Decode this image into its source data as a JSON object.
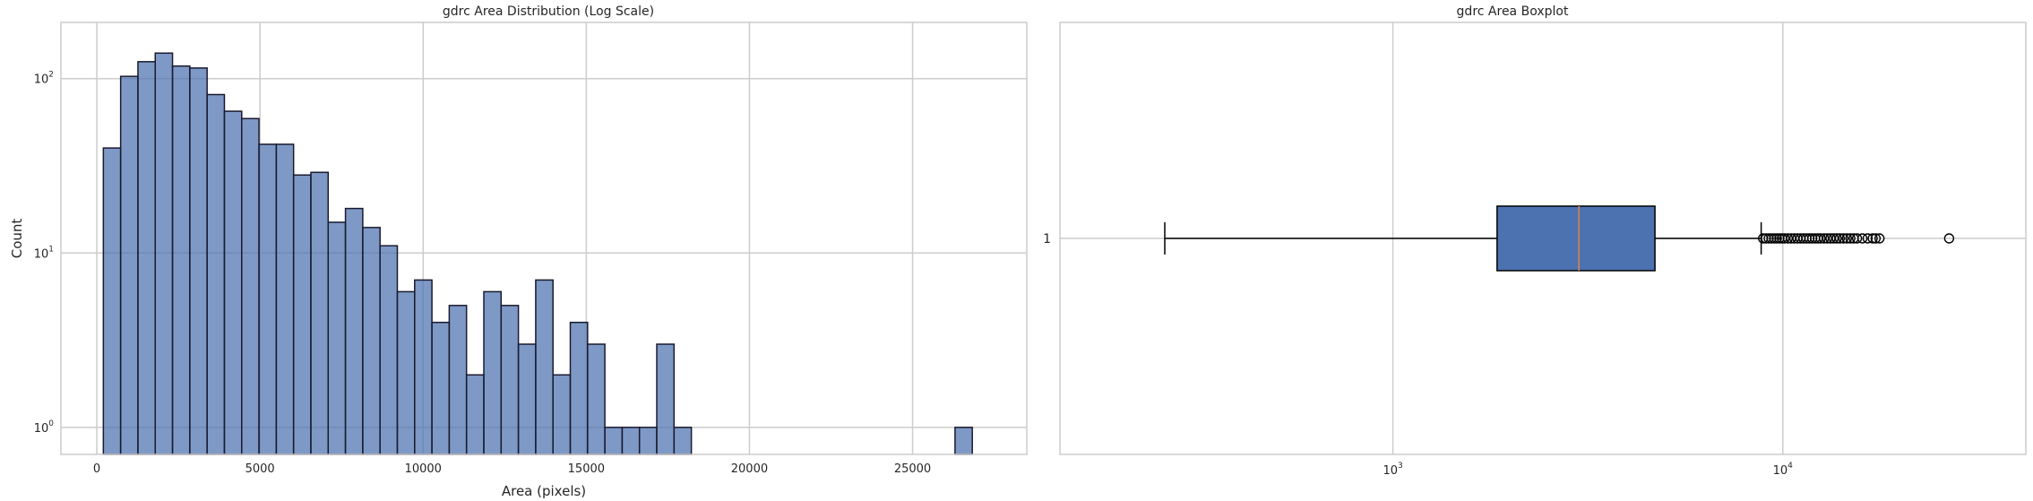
{
  "chart_data": [
    {
      "type": "bar",
      "title": "gdrc Area Distribution (Log Scale)",
      "xlabel": "Area (pixels)",
      "ylabel": "Count",
      "y_scale": "log",
      "xlim": [
        -1100,
        28500
      ],
      "ylim": [
        0.7,
        210
      ],
      "x_ticks": [
        0,
        5000,
        10000,
        15000,
        20000,
        25000
      ],
      "x_tick_labels": [
        "0",
        "5000",
        "10000",
        "15000",
        "20000",
        "25000"
      ],
      "y_ticks": [
        1,
        10,
        100
      ],
      "y_tick_labels": [
        {
          "base": "10",
          "exp": "0"
        },
        {
          "base": "10",
          "exp": "1"
        },
        {
          "base": "10",
          "exp": "2"
        }
      ],
      "grid": true,
      "bar_color": "#4c72b0",
      "bar_edge_color": "#1a1a2e",
      "bins": [
        {
          "x0": 200,
          "x1": 730,
          "count": 40
        },
        {
          "x0": 730,
          "x1": 1260,
          "count": 103
        },
        {
          "x0": 1260,
          "x1": 1790,
          "count": 125
        },
        {
          "x0": 1790,
          "x1": 2320,
          "count": 140
        },
        {
          "x0": 2320,
          "x1": 2850,
          "count": 118
        },
        {
          "x0": 2850,
          "x1": 3380,
          "count": 115
        },
        {
          "x0": 3380,
          "x1": 3910,
          "count": 81
        },
        {
          "x0": 3910,
          "x1": 4440,
          "count": 65
        },
        {
          "x0": 4440,
          "x1": 4970,
          "count": 59
        },
        {
          "x0": 4970,
          "x1": 5500,
          "count": 42
        },
        {
          "x0": 5500,
          "x1": 6030,
          "count": 42
        },
        {
          "x0": 6030,
          "x1": 6560,
          "count": 28
        },
        {
          "x0": 6560,
          "x1": 7090,
          "count": 29
        },
        {
          "x0": 7090,
          "x1": 7620,
          "count": 15
        },
        {
          "x0": 7620,
          "x1": 8150,
          "count": 18
        },
        {
          "x0": 8150,
          "x1": 8680,
          "count": 14
        },
        {
          "x0": 8680,
          "x1": 9210,
          "count": 11
        },
        {
          "x0": 9210,
          "x1": 9740,
          "count": 6
        },
        {
          "x0": 9740,
          "x1": 10270,
          "count": 7
        },
        {
          "x0": 10270,
          "x1": 10800,
          "count": 4
        },
        {
          "x0": 10800,
          "x1": 11330,
          "count": 5
        },
        {
          "x0": 11330,
          "x1": 11860,
          "count": 2
        },
        {
          "x0": 11860,
          "x1": 12390,
          "count": 6
        },
        {
          "x0": 12390,
          "x1": 12920,
          "count": 5
        },
        {
          "x0": 12920,
          "x1": 13450,
          "count": 3
        },
        {
          "x0": 13450,
          "x1": 13980,
          "count": 7
        },
        {
          "x0": 13980,
          "x1": 14510,
          "count": 2
        },
        {
          "x0": 14510,
          "x1": 15040,
          "count": 4
        },
        {
          "x0": 15040,
          "x1": 15570,
          "count": 3
        },
        {
          "x0": 15570,
          "x1": 16100,
          "count": 1
        },
        {
          "x0": 16100,
          "x1": 16630,
          "count": 1
        },
        {
          "x0": 16630,
          "x1": 17160,
          "count": 1
        },
        {
          "x0": 17160,
          "x1": 17690,
          "count": 3
        },
        {
          "x0": 17690,
          "x1": 18220,
          "count": 1
        },
        {
          "x0": 26300,
          "x1": 26830,
          "count": 1
        }
      ]
    },
    {
      "type": "boxplot",
      "title": "gdrc Area Boxplot",
      "xlabel": "",
      "ylabel": "",
      "x_scale": "log",
      "xlim": [
        140,
        42000
      ],
      "x_ticks": [
        1000,
        10000
      ],
      "x_tick_labels": [
        {
          "base": "10",
          "exp": "3"
        },
        {
          "base": "10",
          "exp": "4"
        }
      ],
      "y_tick_labels": [
        "1"
      ],
      "grid": true,
      "box_color": "#4c72b0",
      "median_color": "#dd8452",
      "box": {
        "whisker_low": 260,
        "q1": 1850,
        "median": 3000,
        "q3": 4700,
        "whisker_high": 8800
      },
      "outliers": [
        8900,
        9050,
        9200,
        9350,
        9500,
        9650,
        9800,
        9950,
        10100,
        10300,
        10500,
        10700,
        10900,
        11100,
        11300,
        11500,
        11700,
        11900,
        12100,
        12300,
        12500,
        12750,
        13000,
        13250,
        13500,
        13750,
        14000,
        14300,
        14600,
        14900,
        15200,
        15500,
        16000,
        16500,
        17000,
        17300,
        17700,
        26700
      ]
    }
  ]
}
